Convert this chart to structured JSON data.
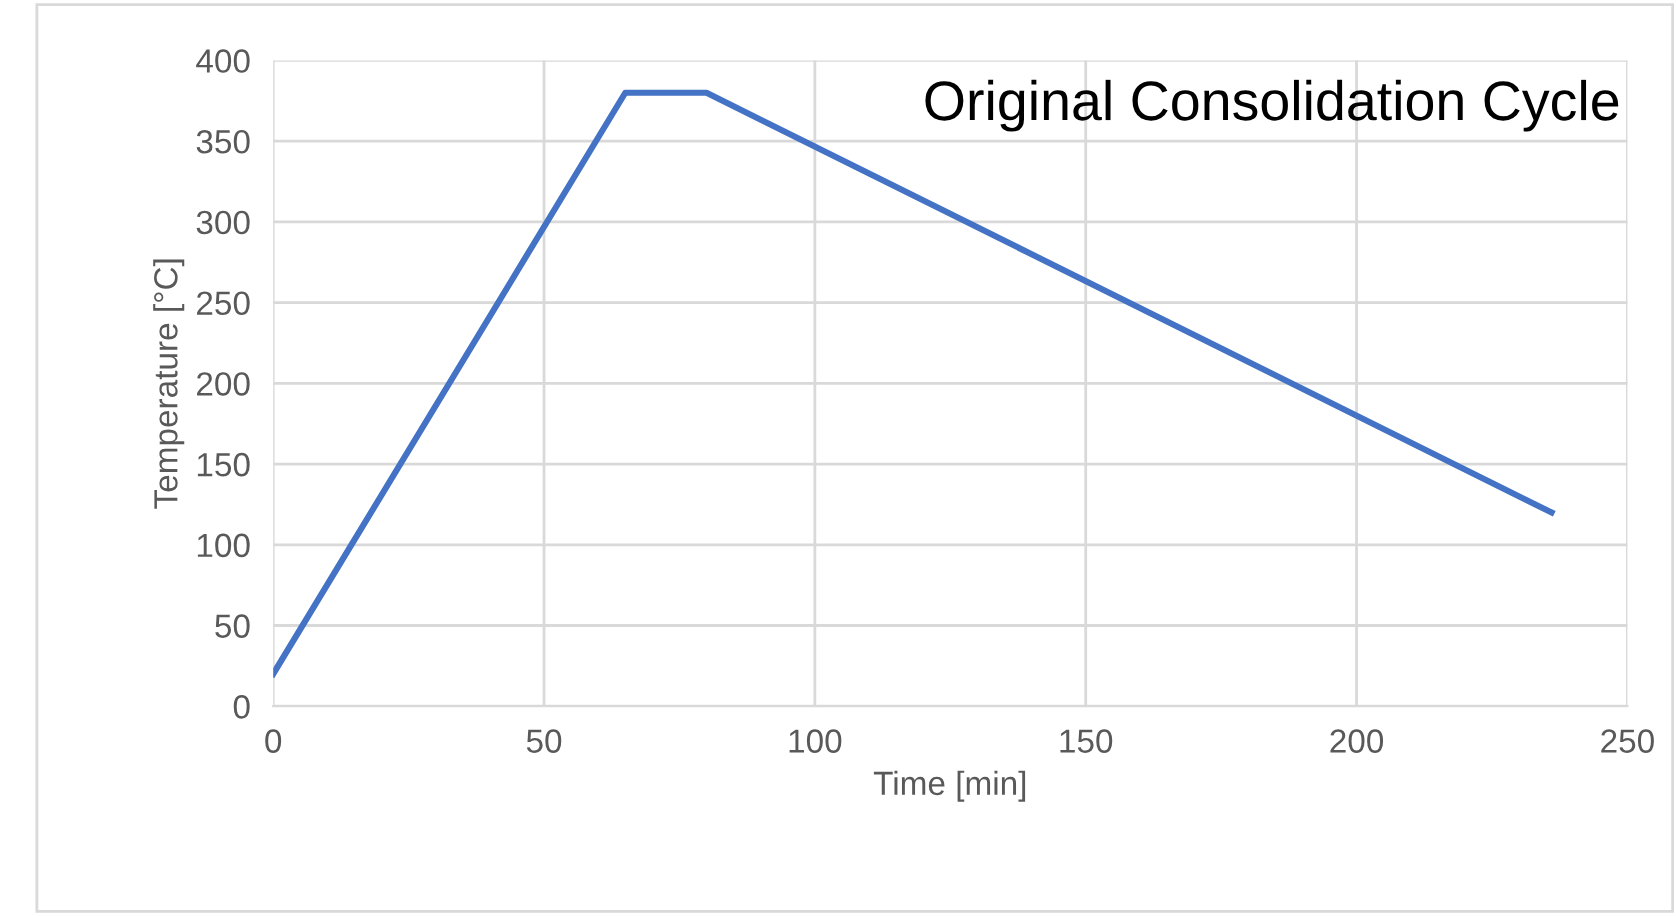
{
  "chart_data": {
    "type": "line",
    "title": "Original Consolidation Cycle",
    "xlabel": "Time [min]",
    "ylabel": "Temperature [°C]",
    "series": [
      {
        "color": "#4472c4",
        "x": [
          0,
          65,
          80,
          236
        ],
        "values": [
          20,
          380,
          380,
          120
        ]
      }
    ],
    "xlim": [
      0,
      250
    ],
    "xticks": [
      0,
      50,
      100,
      150,
      200,
      250
    ],
    "ylim": [
      0,
      400
    ],
    "yticks": [
      0,
      50,
      100,
      150,
      200,
      250,
      300,
      350,
      400
    ],
    "grid": true,
    "marker": "none",
    "line_style": "solid",
    "legend": false
  }
}
